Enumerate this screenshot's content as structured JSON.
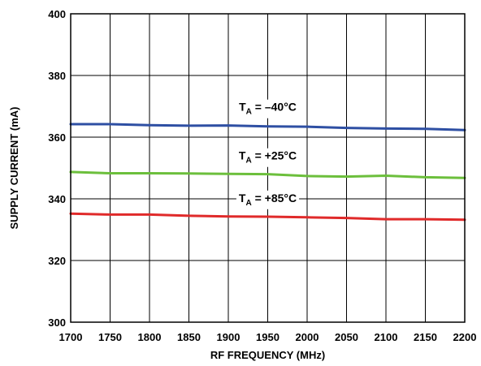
{
  "chart_data": {
    "type": "line",
    "xlabel": "RF FREQUENCY (MHz)",
    "ylabel": "SUPPLY CURRENT (mA)",
    "xlim": [
      1700,
      2200
    ],
    "ylim": [
      300,
      400
    ],
    "x_ticks": [
      1700,
      1750,
      1800,
      1850,
      1900,
      1950,
      2000,
      2050,
      2100,
      2150,
      2200
    ],
    "y_ticks": [
      300,
      320,
      340,
      360,
      380,
      400
    ],
    "grid": true,
    "x": [
      1700,
      1750,
      1800,
      1850,
      1900,
      1950,
      2000,
      2050,
      2100,
      2150,
      2200
    ],
    "series": [
      {
        "name": "TA = –40°C",
        "label_main": "T",
        "label_sub": "A",
        "label_rest": " = –40°C",
        "color": "#2e4fa3",
        "values": [
          364.2,
          364.2,
          363.9,
          363.7,
          363.8,
          363.5,
          363.4,
          363.0,
          362.8,
          362.7,
          362.3
        ]
      },
      {
        "name": "TA = +25°C",
        "label_main": "T",
        "label_sub": "A",
        "label_rest": " = +25°C",
        "color": "#6cbf3c",
        "values": [
          348.7,
          348.3,
          348.3,
          348.2,
          348.1,
          348.0,
          347.4,
          347.2,
          347.5,
          347.0,
          346.8
        ]
      },
      {
        "name": "TA = +85°C",
        "label_main": "T",
        "label_sub": "A",
        "label_rest": " = +85°C",
        "color": "#e02a2a",
        "values": [
          335.2,
          334.9,
          334.9,
          334.5,
          334.3,
          334.2,
          334.0,
          333.8,
          333.4,
          333.4,
          333.2
        ]
      }
    ]
  }
}
